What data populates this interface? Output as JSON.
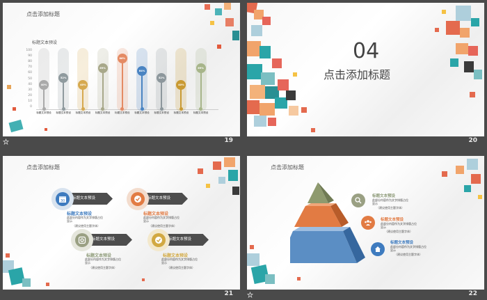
{
  "slides": [
    {
      "number": "19",
      "title": "点击添加标题",
      "chart_data": {
        "type": "bar",
        "title": "标题文本预设",
        "yticks": [
          "100",
          "90",
          "80",
          "70",
          "60",
          "50",
          "40",
          "30",
          "20",
          "10",
          "0"
        ],
        "ylim": [
          0,
          100
        ],
        "categories": [
          "标题文本预设",
          "标题文本预设",
          "标题文本预设",
          "标题文本预设",
          "标题文本预设",
          "标题文本预设",
          "标题文本预设",
          "标题文本预设",
          "标题文本预设"
        ],
        "values": [
          40,
          52,
          40,
          69,
          86,
          64,
          52,
          40,
          69
        ],
        "labels": [
          "40%",
          "52%",
          "40%",
          "69%",
          "86%",
          "64%",
          "52%",
          "40%",
          "69%"
        ],
        "colors": [
          "#a9a9a9",
          "#8f9a9e",
          "#d6a94f",
          "#a8a88a",
          "#e48a63",
          "#4a84c2",
          "#8d979c",
          "#c99a33",
          "#a7b58a"
        ]
      }
    },
    {
      "number": "20",
      "section_number": "04",
      "title": "点击添加标题"
    },
    {
      "number": "21",
      "title": "点击添加标题",
      "items": [
        {
          "tag": "标题文本预设",
          "heading": "标题文本预设",
          "text": "此部分内容作为文字排版占位显示",
          "note": "（建议使用主题字体）",
          "color": "#3e7bbf",
          "heading_color": "#3e7bbf",
          "icon": "calendar-icon",
          "icon_text": "30"
        },
        {
          "tag": "标题文本预设",
          "heading": "标题文本预设",
          "text": "此部分内容作为文字排版占位显示",
          "note": "（建议使用主题字体）",
          "color": "#e27b43",
          "heading_color": "#e27b43",
          "icon": "check-icon"
        },
        {
          "tag": "标题文本预设",
          "heading": "标题文本预设",
          "text": "此部分内容作为文字排版占位显示",
          "note": "（建议使用主题字体）",
          "color": "#9aa083",
          "heading_color": "#8d9a78",
          "icon": "instagram-icon"
        },
        {
          "tag": "标题文本预设",
          "heading": "标题文本预设",
          "text": "此部分内容作为文字排版占位显示",
          "note": "（建议使用主题字体）",
          "color": "#d2a942",
          "heading_color": "#d2a942",
          "icon": "check-icon"
        }
      ]
    },
    {
      "number": "22",
      "items": [
        {
          "heading": "标题文本预设",
          "text": "此部分内容作为文字排版占位显示",
          "note": "（建议使用主题字体）",
          "color": "#9aa083",
          "icon": "search-icon"
        },
        {
          "heading": "标题文本预设",
          "text": "此部分内容作为文字排版占位显示",
          "note": "（建议使用主题字体）",
          "color": "#e27b43",
          "icon": "group-icon"
        },
        {
          "heading": "标题文本预设",
          "text": "此部分内容作为文字排版占位显示",
          "note": "（建议使用主题字体）",
          "color": "#3e7bbf",
          "icon": "home-icon"
        }
      ]
    }
  ]
}
